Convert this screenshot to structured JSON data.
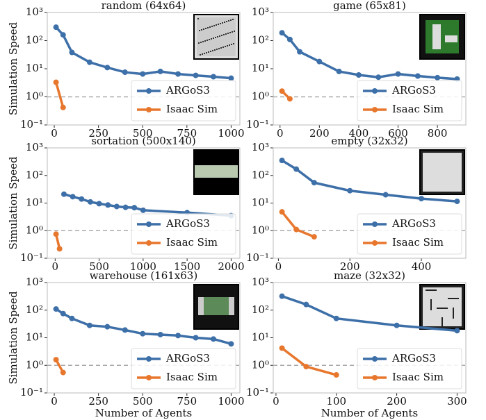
{
  "chart_data": [
    {
      "type": "line",
      "title": "random (64x64)",
      "y_label": "Simulation Speed",
      "log_y": true,
      "hline": 1,
      "legend": "lower right",
      "xlim": [
        -39.5,
        1049.5
      ],
      "xticks": [
        0,
        250,
        500,
        750,
        1000
      ],
      "ylim": [
        0.1,
        1000
      ],
      "yticks": [
        {
          "value": 0.1,
          "label": "10⁻¹"
        },
        {
          "value": 1,
          "label": "10⁰"
        },
        {
          "value": 10,
          "label": "10¹"
        },
        {
          "value": 100,
          "label": "10²"
        },
        {
          "value": 1000,
          "label": "10³"
        }
      ],
      "series": [
        {
          "name": "ARGoS3",
          "color": "#3d6fa8",
          "x": [
            10,
            50,
            100,
            200,
            300,
            400,
            500,
            600,
            700,
            800,
            900,
            1000
          ],
          "values": [
            300,
            160,
            38,
            17,
            11,
            7.5,
            6.5,
            8,
            6.5,
            5.8,
            5.2,
            4.6
          ]
        },
        {
          "name": "Isaac Sim",
          "color": "#e8772e",
          "x": [
            10,
            50
          ],
          "values": [
            3.3,
            0.42
          ]
        }
      ]
    },
    {
      "type": "line",
      "title": "game (65x81)",
      "log_y": true,
      "hline": 1,
      "legend": "lower right",
      "xlim": [
        -34.5,
        944.5
      ],
      "xticks": [
        0,
        200,
        400,
        600,
        800
      ],
      "ylim": [
        0.1,
        1000
      ],
      "yticks": [
        {
          "value": 0.1,
          "label": "10⁻¹"
        },
        {
          "value": 1,
          "label": "10⁰"
        },
        {
          "value": 10,
          "label": "10¹"
        },
        {
          "value": 100,
          "label": "10²"
        },
        {
          "value": 1000,
          "label": "10³"
        }
      ],
      "series": [
        {
          "name": "ARGoS3",
          "color": "#3d6fa8",
          "x": [
            10,
            50,
            100,
            200,
            300,
            400,
            500,
            600,
            700,
            800,
            900
          ],
          "values": [
            190,
            110,
            40,
            18,
            8,
            6,
            5,
            6.5,
            5.5,
            4.8,
            4.3
          ]
        },
        {
          "name": "Isaac Sim",
          "color": "#e8772e",
          "x": [
            10,
            50
          ],
          "values": [
            1.6,
            0.85
          ]
        }
      ]
    },
    {
      "type": "line",
      "title": "sortation (500x140)",
      "y_label": "Simulation Speed",
      "log_y": true,
      "hline": 1,
      "legend": "lower right",
      "xlim": [
        -89.5,
        2099.5
      ],
      "xticks": [
        0,
        500,
        1000,
        1500,
        2000
      ],
      "ylim": [
        0.1,
        1000
      ],
      "yticks": [
        {
          "value": 0.1,
          "label": "10⁻¹"
        },
        {
          "value": 1,
          "label": "10⁰"
        },
        {
          "value": 10,
          "label": "10¹"
        },
        {
          "value": 100,
          "label": "10²"
        },
        {
          "value": 1000,
          "label": "10³"
        }
      ],
      "series": [
        {
          "name": "ARGoS3",
          "color": "#3d6fa8",
          "x": [
            100,
            200,
            300,
            400,
            500,
            600,
            700,
            800,
            900,
            1000,
            1500,
            2000
          ],
          "values": [
            21,
            17,
            14,
            11,
            9.5,
            8.5,
            7.5,
            7,
            6.8,
            5.5,
            4.5,
            3.5
          ]
        },
        {
          "name": "Isaac Sim",
          "color": "#e8772e",
          "x": [
            10,
            50
          ],
          "values": [
            0.75,
            0.22
          ]
        }
      ]
    },
    {
      "type": "line",
      "title": "empty (32x32)",
      "log_y": true,
      "hline": 1,
      "legend": "lower right",
      "xlim": [
        -14.5,
        524.5
      ],
      "xticks": [
        0,
        200,
        400
      ],
      "ylim": [
        0.1,
        1000
      ],
      "yticks": [
        {
          "value": 0.1,
          "label": "10⁻¹"
        },
        {
          "value": 1,
          "label": "10⁰"
        },
        {
          "value": 10,
          "label": "10¹"
        },
        {
          "value": 100,
          "label": "10²"
        },
        {
          "value": 1000,
          "label": "10³"
        }
      ],
      "series": [
        {
          "name": "ARGoS3",
          "color": "#3d6fa8",
          "x": [
            10,
            50,
            100,
            200,
            300,
            400,
            500
          ],
          "values": [
            350,
            170,
            55,
            28,
            20,
            14.5,
            11.5
          ]
        },
        {
          "name": "Isaac Sim",
          "color": "#e8772e",
          "x": [
            10,
            50,
            100
          ],
          "values": [
            4.8,
            1.1,
            0.6
          ]
        }
      ]
    },
    {
      "type": "line",
      "title": "warehouse (161x63)",
      "y_label": "Simulation Speed",
      "x_label": "Number of Agents",
      "log_y": true,
      "hline": 1,
      "legend": "lower right",
      "xlim": [
        -39.5,
        1049.5
      ],
      "xticks": [
        0,
        250,
        500,
        750,
        1000
      ],
      "ylim": [
        0.1,
        1000
      ],
      "yticks": [
        {
          "value": 0.1,
          "label": "10⁻¹"
        },
        {
          "value": 1,
          "label": "10⁰"
        },
        {
          "value": 10,
          "label": "10¹"
        },
        {
          "value": 100,
          "label": "10²"
        },
        {
          "value": 1000,
          "label": "10³"
        }
      ],
      "series": [
        {
          "name": "ARGoS3",
          "color": "#3d6fa8",
          "x": [
            10,
            50,
            100,
            200,
            300,
            400,
            500,
            600,
            700,
            800,
            900,
            1000
          ],
          "values": [
            110,
            75,
            50,
            28,
            25,
            19,
            14,
            13,
            12,
            10,
            9,
            6
          ]
        },
        {
          "name": "Isaac Sim",
          "color": "#e8772e",
          "x": [
            10,
            50
          ],
          "values": [
            1.6,
            0.55
          ]
        }
      ]
    },
    {
      "type": "line",
      "title": "maze (32x32)",
      "x_label": "Number of Agents",
      "log_y": true,
      "hline": 1,
      "legend": "lower right",
      "xlim": [
        -4.5,
        314.5
      ],
      "xticks": [
        0,
        100,
        200,
        300
      ],
      "ylim": [
        0.1,
        1000
      ],
      "yticks": [
        {
          "value": 0.1,
          "label": "10⁻¹"
        },
        {
          "value": 1,
          "label": "10⁰"
        },
        {
          "value": 10,
          "label": "10¹"
        },
        {
          "value": 100,
          "label": "10²"
        },
        {
          "value": 1000,
          "label": "10³"
        }
      ],
      "series": [
        {
          "name": "ARGoS3",
          "color": "#3d6fa8",
          "x": [
            10,
            50,
            100,
            200,
            300
          ],
          "values": [
            320,
            160,
            50,
            28,
            18
          ]
        },
        {
          "name": "Isaac Sim",
          "color": "#e8772e",
          "x": [
            10,
            50,
            100
          ],
          "values": [
            4.2,
            0.9,
            0.45
          ]
        }
      ]
    }
  ]
}
